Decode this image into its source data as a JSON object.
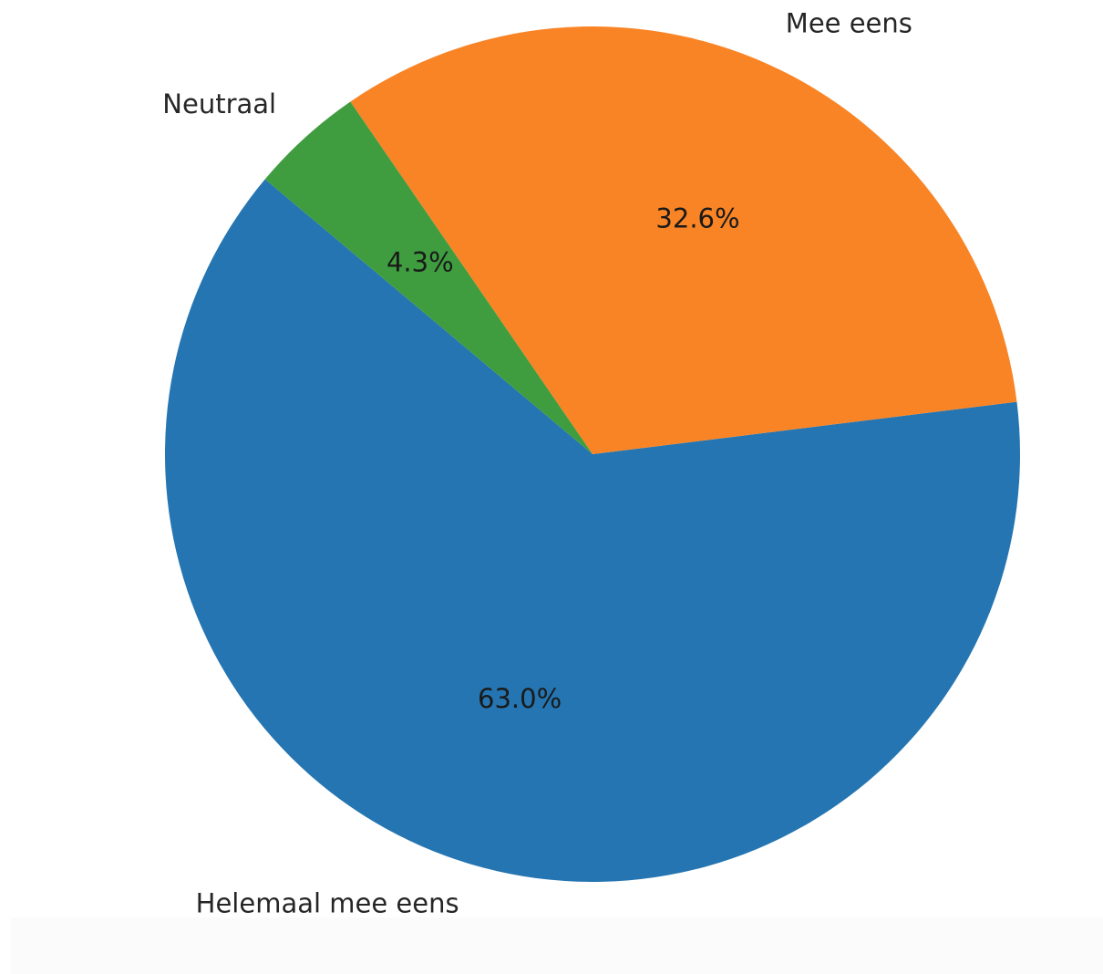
{
  "chart_data": {
    "type": "pie",
    "slices": [
      {
        "label": "Helemaal mee eens",
        "value": 63.0,
        "pct_label": "63.0%",
        "color": "#2475b1"
      },
      {
        "label": "Mee eens",
        "value": 32.6,
        "pct_label": "32.6%",
        "color": "#f98425"
      },
      {
        "label": "Neutraal",
        "value": 4.3,
        "pct_label": "4.3%",
        "color": "#3f9d3f"
      }
    ]
  }
}
